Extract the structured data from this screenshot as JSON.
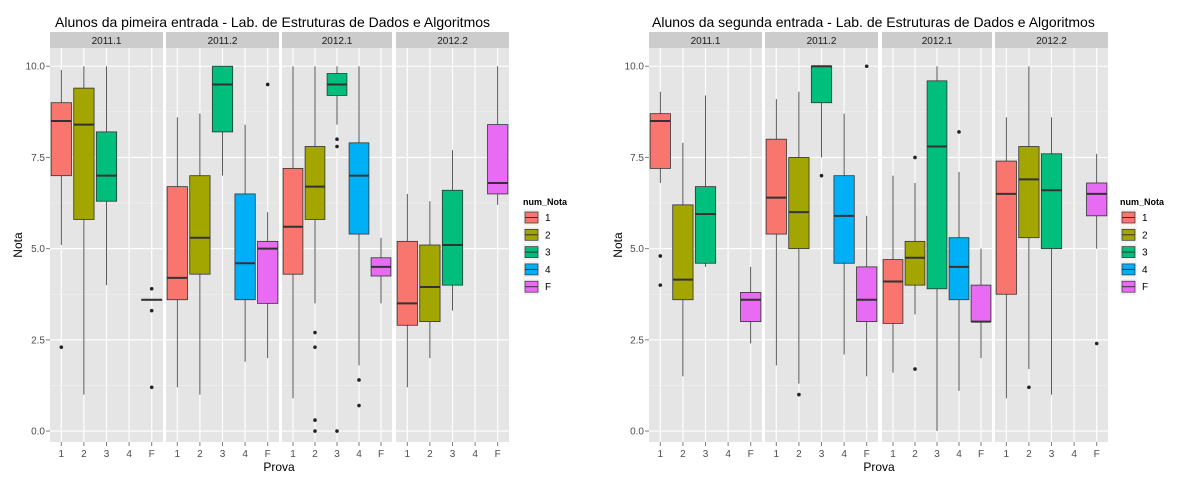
{
  "chart_data": [
    {
      "type": "boxplot",
      "title": "Alunos da pimeira entrada -  Lab. de Estruturas de Dados e Algoritmos",
      "xlabel": "Prova",
      "ylabel": "Nota",
      "ylim": [
        -0.3,
        10.5
      ],
      "yticks": [
        "0.0",
        "2.5",
        "5.0",
        "7.5",
        "10.0"
      ],
      "x_categories": [
        "1",
        "2",
        "3",
        "4",
        "F"
      ],
      "facets": [
        {
          "label": "2011.1",
          "boxes": [
            {
              "cat": "1",
              "min": 5.1,
              "q1": 7.0,
              "median": 8.5,
              "q3": 9.0,
              "max": 9.9,
              "outliers": [
                2.3
              ]
            },
            {
              "cat": "2",
              "min": 1.0,
              "q1": 5.8,
              "median": 8.4,
              "q3": 9.4,
              "max": 10.0,
              "outliers": []
            },
            {
              "cat": "3",
              "min": 4.0,
              "q1": 6.3,
              "median": 7.0,
              "q3": 8.2,
              "max": 10.0,
              "outliers": []
            },
            {
              "cat": "F",
              "min": 3.6,
              "q1": 3.6,
              "median": 3.6,
              "q3": 3.6,
              "max": 3.6,
              "outliers": [
                3.9,
                3.3,
                1.2
              ]
            }
          ]
        },
        {
          "label": "2011.2",
          "boxes": [
            {
              "cat": "1",
              "min": 1.2,
              "q1": 3.6,
              "median": 4.2,
              "q3": 6.7,
              "max": 8.6,
              "outliers": []
            },
            {
              "cat": "2",
              "min": 1.0,
              "q1": 4.3,
              "median": 5.3,
              "q3": 7.0,
              "max": 8.7,
              "outliers": []
            },
            {
              "cat": "3",
              "min": 7.0,
              "q1": 8.2,
              "median": 9.5,
              "q3": 10.0,
              "max": 10.0,
              "outliers": []
            },
            {
              "cat": "4",
              "min": 1.9,
              "q1": 3.6,
              "median": 4.6,
              "q3": 6.5,
              "max": 8.4,
              "outliers": []
            },
            {
              "cat": "F",
              "min": 2.0,
              "q1": 3.5,
              "median": 5.0,
              "q3": 5.2,
              "max": 6.0,
              "outliers": [
                9.5
              ]
            }
          ]
        },
        {
          "label": "2012.1",
          "boxes": [
            {
              "cat": "1",
              "min": 0.9,
              "q1": 4.3,
              "median": 5.6,
              "q3": 7.2,
              "max": 10.0,
              "outliers": []
            },
            {
              "cat": "2",
              "min": 3.5,
              "q1": 5.8,
              "median": 6.7,
              "q3": 7.8,
              "max": 10.0,
              "outliers": [
                2.7,
                2.3,
                0.3,
                0.0
              ]
            },
            {
              "cat": "3",
              "min": 8.4,
              "q1": 9.2,
              "median": 9.5,
              "q3": 9.8,
              "max": 10.0,
              "outliers": [
                8.0,
                7.8,
                0.0
              ]
            },
            {
              "cat": "4",
              "min": 1.8,
              "q1": 5.4,
              "median": 7.0,
              "q3": 7.9,
              "max": 10.0,
              "outliers": [
                1.4,
                0.7
              ]
            },
            {
              "cat": "F",
              "min": 3.5,
              "q1": 4.25,
              "median": 4.5,
              "q3": 4.75,
              "max": 5.3,
              "outliers": []
            }
          ]
        },
        {
          "label": "2012.2",
          "boxes": [
            {
              "cat": "1",
              "min": 1.2,
              "q1": 2.9,
              "median": 3.5,
              "q3": 5.2,
              "max": 6.5,
              "outliers": []
            },
            {
              "cat": "2",
              "min": 2.0,
              "q1": 3.0,
              "median": 3.95,
              "q3": 5.1,
              "max": 6.3,
              "outliers": []
            },
            {
              "cat": "3",
              "min": 3.3,
              "q1": 4.0,
              "median": 5.1,
              "q3": 6.6,
              "max": 7.7,
              "outliers": []
            },
            {
              "cat": "F",
              "min": 6.2,
              "q1": 6.5,
              "median": 6.8,
              "q3": 8.4,
              "max": 10.0,
              "outliers": []
            }
          ]
        }
      ]
    },
    {
      "type": "boxplot",
      "title": "Alunos da segunda entrada -  Lab. de Estruturas de Dados e Algoritmos",
      "xlabel": "Prova",
      "ylabel": "Nota",
      "ylim": [
        -0.3,
        10.5
      ],
      "yticks": [
        "0.0",
        "2.5",
        "5.0",
        "7.5",
        "10.0"
      ],
      "x_categories": [
        "1",
        "2",
        "3",
        "4",
        "F"
      ],
      "facets": [
        {
          "label": "2011.1",
          "boxes": [
            {
              "cat": "1",
              "min": 6.8,
              "q1": 7.2,
              "median": 8.5,
              "q3": 8.7,
              "max": 9.3,
              "outliers": [
                4.8,
                4.0
              ]
            },
            {
              "cat": "2",
              "min": 1.5,
              "q1": 3.6,
              "median": 4.15,
              "q3": 6.2,
              "max": 7.9,
              "outliers": []
            },
            {
              "cat": "3",
              "min": 4.5,
              "q1": 4.6,
              "median": 5.95,
              "q3": 6.7,
              "max": 9.2,
              "outliers": []
            },
            {
              "cat": "F",
              "min": 2.4,
              "q1": 3.0,
              "median": 3.6,
              "q3": 3.8,
              "max": 4.5,
              "outliers": []
            }
          ]
        },
        {
          "label": "2011.2",
          "boxes": [
            {
              "cat": "1",
              "min": 1.8,
              "q1": 5.4,
              "median": 6.4,
              "q3": 8.0,
              "max": 9.1,
              "outliers": []
            },
            {
              "cat": "2",
              "min": 1.3,
              "q1": 5.0,
              "median": 6.0,
              "q3": 7.5,
              "max": 9.3,
              "outliers": [
                1.0
              ]
            },
            {
              "cat": "3",
              "min": 7.5,
              "q1": 9.0,
              "median": 10.0,
              "q3": 10.0,
              "max": 10.0,
              "outliers": [
                7.0
              ]
            },
            {
              "cat": "4",
              "min": 2.1,
              "q1": 4.6,
              "median": 5.9,
              "q3": 7.0,
              "max": 8.7,
              "outliers": []
            },
            {
              "cat": "F",
              "min": 1.5,
              "q1": 3.0,
              "median": 3.6,
              "q3": 4.5,
              "max": 5.9,
              "outliers": [
                10.0
              ]
            }
          ]
        },
        {
          "label": "2012.1",
          "boxes": [
            {
              "cat": "1",
              "min": 1.6,
              "q1": 2.95,
              "median": 4.1,
              "q3": 4.7,
              "max": 7.0,
              "outliers": []
            },
            {
              "cat": "2",
              "min": 3.2,
              "q1": 4.0,
              "median": 4.75,
              "q3": 5.2,
              "max": 6.8,
              "outliers": [
                7.5,
                1.7
              ]
            },
            {
              "cat": "3",
              "min": 0.0,
              "q1": 3.9,
              "median": 7.8,
              "q3": 9.6,
              "max": 10.0,
              "outliers": []
            },
            {
              "cat": "4",
              "min": 1.1,
              "q1": 3.6,
              "median": 4.5,
              "q3": 5.3,
              "max": 7.1,
              "outliers": [
                8.2
              ]
            },
            {
              "cat": "F",
              "min": 2.0,
              "q1": 3.0,
              "median": 3.0,
              "q3": 4.0,
              "max": 5.0,
              "outliers": []
            }
          ]
        },
        {
          "label": "2012.2",
          "boxes": [
            {
              "cat": "1",
              "min": 0.9,
              "q1": 3.75,
              "median": 6.5,
              "q3": 7.4,
              "max": 8.6,
              "outliers": []
            },
            {
              "cat": "2",
              "min": 1.7,
              "q1": 5.3,
              "median": 6.9,
              "q3": 7.8,
              "max": 10.0,
              "outliers": [
                1.2
              ]
            },
            {
              "cat": "3",
              "min": 1.0,
              "q1": 5.0,
              "median": 6.6,
              "q3": 7.6,
              "max": 8.6,
              "outliers": []
            },
            {
              "cat": "F",
              "min": 5.0,
              "q1": 5.9,
              "median": 6.5,
              "q3": 6.8,
              "max": 7.6,
              "outliers": [
                2.4
              ]
            }
          ]
        }
      ]
    }
  ],
  "legend": {
    "title": "num_Nota",
    "items": [
      {
        "label": "1",
        "color": "#f8766d"
      },
      {
        "label": "2",
        "color": "#a3a500"
      },
      {
        "label": "3",
        "color": "#00bf7d"
      },
      {
        "label": "4",
        "color": "#00b0f6"
      },
      {
        "label": "F",
        "color": "#e76bf3"
      }
    ]
  },
  "colors": {
    "panel_bg": "#e5e5e5",
    "strip_bg": "#cccccc",
    "grid_major": "#ffffff",
    "grid_minor": "#f2f2f2"
  }
}
